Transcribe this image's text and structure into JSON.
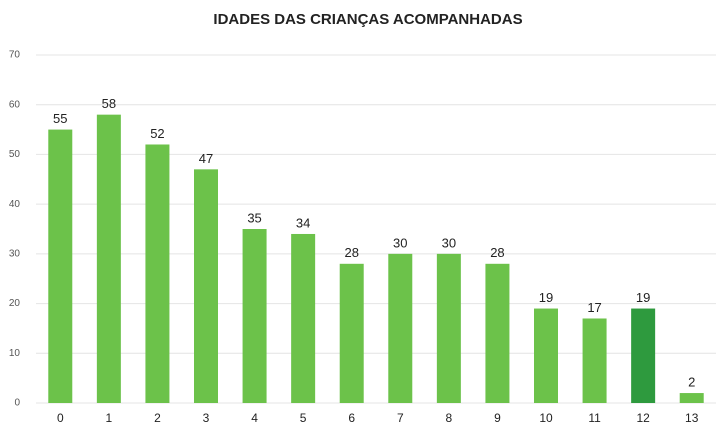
{
  "chart_data": {
    "type": "bar",
    "title": "IDADES DAS CRIANÇAS ACOMPANHADAS",
    "categories": [
      "0",
      "1",
      "2",
      "3",
      "4",
      "5",
      "6",
      "7",
      "8",
      "9",
      "10",
      "11",
      "12",
      "13"
    ],
    "values": [
      55,
      58,
      52,
      47,
      35,
      34,
      28,
      30,
      30,
      28,
      19,
      17,
      19,
      2
    ],
    "colors": [
      "#6cc24a",
      "#6cc24a",
      "#6cc24a",
      "#6cc24a",
      "#6cc24a",
      "#6cc24a",
      "#6cc24a",
      "#6cc24a",
      "#6cc24a",
      "#6cc24a",
      "#6cc24a",
      "#6cc24a",
      "#2e9a3e",
      "#6cc24a"
    ],
    "ylim": [
      0,
      70
    ],
    "yticks": [
      0,
      10,
      20,
      30,
      40,
      50,
      60,
      70
    ],
    "grid": true
  }
}
